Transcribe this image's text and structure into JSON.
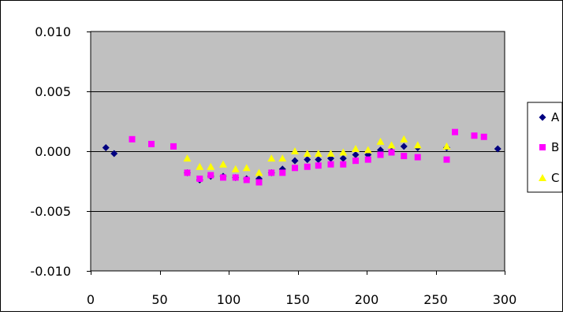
{
  "chart_data": {
    "type": "scatter",
    "title": "",
    "xlabel": "",
    "ylabel": "",
    "xlim": [
      0,
      300
    ],
    "ylim": [
      -0.01,
      0.01
    ],
    "x_ticks": [
      0,
      50,
      100,
      150,
      200,
      250,
      300
    ],
    "x_tick_labels": [
      "0",
      "50",
      "100",
      "150",
      "200",
      "250",
      "300"
    ],
    "y_ticks": [
      -0.01,
      -0.005,
      0.0,
      0.005,
      0.01
    ],
    "y_tick_labels": [
      "-0.010",
      "-0.005",
      "0.000",
      "0.005",
      "0.010"
    ],
    "grid": "horizontal",
    "plot_background": "#c0c0c0",
    "legend_position": "right",
    "series": [
      {
        "name": "A",
        "marker": "diamond",
        "color": "#000080",
        "points": [
          [
            11,
            0.0003
          ],
          [
            17,
            -0.0002
          ],
          [
            70,
            -0.0018
          ],
          [
            79,
            -0.0024
          ],
          [
            87,
            -0.0021
          ],
          [
            96,
            -0.0021
          ],
          [
            105,
            -0.0022
          ],
          [
            113,
            -0.0023
          ],
          [
            122,
            -0.0023
          ],
          [
            131,
            -0.0018
          ],
          [
            139,
            -0.0015
          ],
          [
            148,
            -0.0008
          ],
          [
            157,
            -0.0007
          ],
          [
            165,
            -0.0007
          ],
          [
            174,
            -0.0006
          ],
          [
            183,
            -0.0006
          ],
          [
            192,
            -0.0003
          ],
          [
            201,
            -0.0003
          ],
          [
            210,
            0.0001
          ],
          [
            218,
            0.0
          ],
          [
            227,
            0.0004
          ],
          [
            237,
            0.0003
          ],
          [
            258,
            0.0003
          ],
          [
            295,
            0.0002
          ]
        ]
      },
      {
        "name": "B",
        "marker": "square",
        "color": "#ff00ff",
        "points": [
          [
            30,
            0.001
          ],
          [
            44,
            0.0006
          ],
          [
            60,
            0.0004
          ],
          [
            70,
            -0.0018
          ],
          [
            79,
            -0.0023
          ],
          [
            87,
            -0.002
          ],
          [
            96,
            -0.0022
          ],
          [
            105,
            -0.0022
          ],
          [
            113,
            -0.0024
          ],
          [
            122,
            -0.0026
          ],
          [
            131,
            -0.0018
          ],
          [
            139,
            -0.0018
          ],
          [
            148,
            -0.0014
          ],
          [
            157,
            -0.0013
          ],
          [
            165,
            -0.0012
          ],
          [
            174,
            -0.0011
          ],
          [
            183,
            -0.0011
          ],
          [
            192,
            -0.0008
          ],
          [
            201,
            -0.0007
          ],
          [
            210,
            -0.0003
          ],
          [
            218,
            -0.0001
          ],
          [
            227,
            -0.0004
          ],
          [
            237,
            -0.0005
          ],
          [
            258,
            -0.0007
          ],
          [
            264,
            0.0016
          ],
          [
            278,
            0.0013
          ],
          [
            285,
            0.0012
          ]
        ]
      },
      {
        "name": "C",
        "marker": "triangle",
        "color": "#ffff00",
        "points": [
          [
            70,
            -0.0006
          ],
          [
            79,
            -0.0013
          ],
          [
            87,
            -0.0013
          ],
          [
            96,
            -0.0011
          ],
          [
            105,
            -0.0015
          ],
          [
            113,
            -0.0014
          ],
          [
            122,
            -0.0018
          ],
          [
            131,
            -0.0006
          ],
          [
            139,
            -0.0006
          ],
          [
            148,
            0.0
          ],
          [
            157,
            -0.0002
          ],
          [
            165,
            -0.0002
          ],
          [
            174,
            -0.0002
          ],
          [
            183,
            -0.0001
          ],
          [
            192,
            0.0002
          ],
          [
            201,
            0.0001
          ],
          [
            210,
            0.0008
          ],
          [
            218,
            0.0005
          ],
          [
            227,
            0.001
          ],
          [
            237,
            0.0005
          ],
          [
            258,
            0.0004
          ]
        ]
      }
    ]
  }
}
